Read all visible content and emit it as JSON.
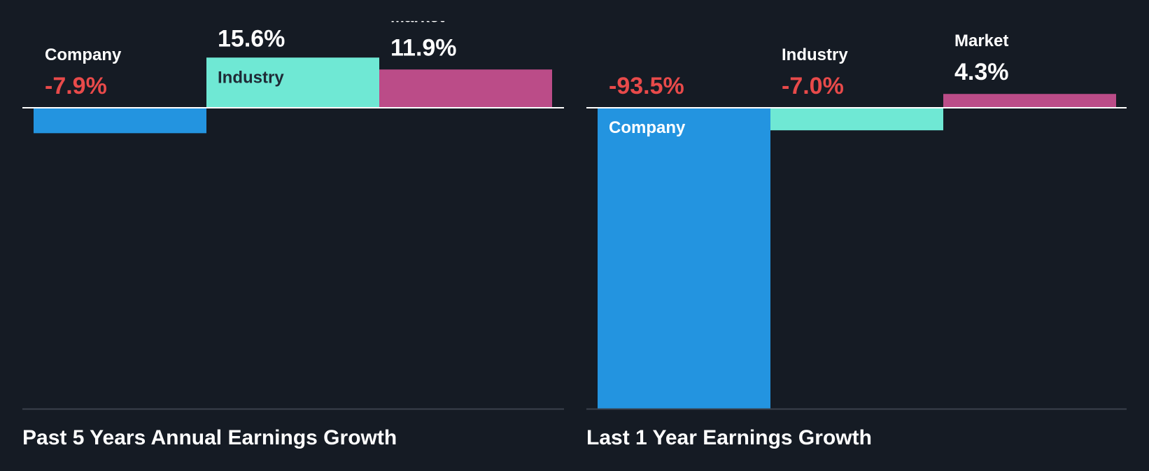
{
  "theme": {
    "background": "#151b24",
    "company_color": "#2394e0",
    "industry_color": "#6fe8d4",
    "market_color": "#bb4c88",
    "negative_value_color": "#e84a4a",
    "positive_value_color": "#ffffff",
    "label_on_bar_dark": "#1f2a36",
    "label_on_bar_light": "#ffffff",
    "zero_line_color": "#ffffff",
    "baseline_color": "#3a414c"
  },
  "chart_data": [
    {
      "type": "bar",
      "title": "Past 5 Years Annual Earnings Growth",
      "categories": [
        "Company",
        "Industry",
        "Market"
      ],
      "values": [
        -7.9,
        15.6,
        11.9
      ],
      "value_labels": [
        "-7.9%",
        "15.6%",
        "11.9%"
      ],
      "unit": "%",
      "ylim": [
        -93.5,
        15.6
      ],
      "grid": false,
      "legend": "none"
    },
    {
      "type": "bar",
      "title": "Last 1 Year Earnings Growth",
      "categories": [
        "Company",
        "Industry",
        "Market"
      ],
      "values": [
        -93.5,
        -7.0,
        4.3
      ],
      "value_labels": [
        "-93.5%",
        "-7.0%",
        "4.3%"
      ],
      "unit": "%",
      "ylim": [
        -93.5,
        15.6
      ],
      "grid": false,
      "legend": "none"
    }
  ]
}
